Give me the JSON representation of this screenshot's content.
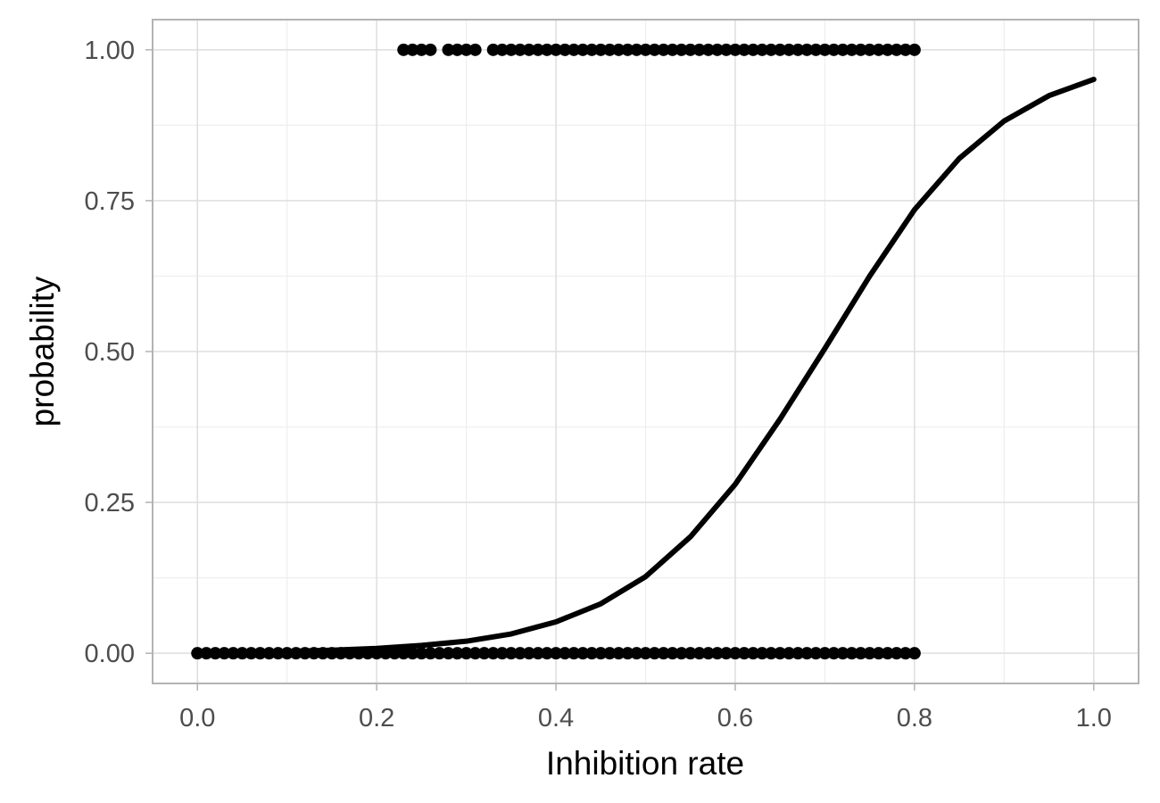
{
  "chart_data": {
    "type": "scatter",
    "title": "",
    "xlabel": "Inhibition rate",
    "ylabel": "probability",
    "xlim": [
      -0.05,
      1.05
    ],
    "ylim": [
      -0.05,
      1.05
    ],
    "x_ticks": [
      0.0,
      0.2,
      0.4,
      0.6,
      0.8,
      1.0
    ],
    "x_tick_labels": [
      "0.0",
      "0.2",
      "0.4",
      "0.6",
      "0.8",
      "1.0"
    ],
    "y_ticks": [
      0.0,
      0.25,
      0.5,
      0.75,
      1.0
    ],
    "y_tick_labels": [
      "0.00",
      "0.25",
      "0.50",
      "0.75",
      "1.00"
    ],
    "grid": true,
    "legend": "none",
    "colors": {
      "points": "#000000",
      "curve": "#000000",
      "grid_major": "#dedede",
      "grid_minor": "#eeeeee",
      "panel_border": "#b3b3b3"
    },
    "series": [
      {
        "type": "scatter",
        "points": [
          {
            "x": 0.0,
            "y": 0
          },
          {
            "x": 0.01,
            "y": 0
          },
          {
            "x": 0.02,
            "y": 0
          },
          {
            "x": 0.03,
            "y": 0
          },
          {
            "x": 0.04,
            "y": 0
          },
          {
            "x": 0.05,
            "y": 0
          },
          {
            "x": 0.06,
            "y": 0
          },
          {
            "x": 0.07,
            "y": 0
          },
          {
            "x": 0.08,
            "y": 0
          },
          {
            "x": 0.09,
            "y": 0
          },
          {
            "x": 0.1,
            "y": 0
          },
          {
            "x": 0.11,
            "y": 0
          },
          {
            "x": 0.12,
            "y": 0
          },
          {
            "x": 0.13,
            "y": 0
          },
          {
            "x": 0.14,
            "y": 0
          },
          {
            "x": 0.15,
            "y": 0
          },
          {
            "x": 0.16,
            "y": 0
          },
          {
            "x": 0.17,
            "y": 0
          },
          {
            "x": 0.18,
            "y": 0
          },
          {
            "x": 0.19,
            "y": 0
          },
          {
            "x": 0.2,
            "y": 0
          },
          {
            "x": 0.21,
            "y": 0
          },
          {
            "x": 0.22,
            "y": 0
          },
          {
            "x": 0.23,
            "y": 0
          },
          {
            "x": 0.24,
            "y": 0
          },
          {
            "x": 0.25,
            "y": 0
          },
          {
            "x": 0.26,
            "y": 0
          },
          {
            "x": 0.27,
            "y": 0
          },
          {
            "x": 0.28,
            "y": 0
          },
          {
            "x": 0.29,
            "y": 0
          },
          {
            "x": 0.3,
            "y": 0
          },
          {
            "x": 0.31,
            "y": 0
          },
          {
            "x": 0.32,
            "y": 0
          },
          {
            "x": 0.33,
            "y": 0
          },
          {
            "x": 0.34,
            "y": 0
          },
          {
            "x": 0.35,
            "y": 0
          },
          {
            "x": 0.36,
            "y": 0
          },
          {
            "x": 0.37,
            "y": 0
          },
          {
            "x": 0.38,
            "y": 0
          },
          {
            "x": 0.39,
            "y": 0
          },
          {
            "x": 0.4,
            "y": 0
          },
          {
            "x": 0.41,
            "y": 0
          },
          {
            "x": 0.42,
            "y": 0
          },
          {
            "x": 0.43,
            "y": 0
          },
          {
            "x": 0.44,
            "y": 0
          },
          {
            "x": 0.45,
            "y": 0
          },
          {
            "x": 0.46,
            "y": 0
          },
          {
            "x": 0.47,
            "y": 0
          },
          {
            "x": 0.48,
            "y": 0
          },
          {
            "x": 0.49,
            "y": 0
          },
          {
            "x": 0.5,
            "y": 0
          },
          {
            "x": 0.51,
            "y": 0
          },
          {
            "x": 0.52,
            "y": 0
          },
          {
            "x": 0.53,
            "y": 0
          },
          {
            "x": 0.54,
            "y": 0
          },
          {
            "x": 0.55,
            "y": 0
          },
          {
            "x": 0.56,
            "y": 0
          },
          {
            "x": 0.57,
            "y": 0
          },
          {
            "x": 0.58,
            "y": 0
          },
          {
            "x": 0.59,
            "y": 0
          },
          {
            "x": 0.6,
            "y": 0
          },
          {
            "x": 0.61,
            "y": 0
          },
          {
            "x": 0.62,
            "y": 0
          },
          {
            "x": 0.63,
            "y": 0
          },
          {
            "x": 0.64,
            "y": 0
          },
          {
            "x": 0.65,
            "y": 0
          },
          {
            "x": 0.66,
            "y": 0
          },
          {
            "x": 0.67,
            "y": 0
          },
          {
            "x": 0.68,
            "y": 0
          },
          {
            "x": 0.69,
            "y": 0
          },
          {
            "x": 0.7,
            "y": 0
          },
          {
            "x": 0.71,
            "y": 0
          },
          {
            "x": 0.72,
            "y": 0
          },
          {
            "x": 0.73,
            "y": 0
          },
          {
            "x": 0.74,
            "y": 0
          },
          {
            "x": 0.75,
            "y": 0
          },
          {
            "x": 0.76,
            "y": 0
          },
          {
            "x": 0.77,
            "y": 0
          },
          {
            "x": 0.78,
            "y": 0
          },
          {
            "x": 0.79,
            "y": 0
          },
          {
            "x": 0.8,
            "y": 0
          },
          {
            "x": 0.23,
            "y": 1
          },
          {
            "x": 0.24,
            "y": 1
          },
          {
            "x": 0.25,
            "y": 1
          },
          {
            "x": 0.26,
            "y": 1
          },
          {
            "x": 0.28,
            "y": 1
          },
          {
            "x": 0.29,
            "y": 1
          },
          {
            "x": 0.3,
            "y": 1
          },
          {
            "x": 0.31,
            "y": 1
          },
          {
            "x": 0.33,
            "y": 1
          },
          {
            "x": 0.34,
            "y": 1
          },
          {
            "x": 0.35,
            "y": 1
          },
          {
            "x": 0.36,
            "y": 1
          },
          {
            "x": 0.37,
            "y": 1
          },
          {
            "x": 0.38,
            "y": 1
          },
          {
            "x": 0.39,
            "y": 1
          },
          {
            "x": 0.4,
            "y": 1
          },
          {
            "x": 0.41,
            "y": 1
          },
          {
            "x": 0.42,
            "y": 1
          },
          {
            "x": 0.43,
            "y": 1
          },
          {
            "x": 0.44,
            "y": 1
          },
          {
            "x": 0.45,
            "y": 1
          },
          {
            "x": 0.46,
            "y": 1
          },
          {
            "x": 0.47,
            "y": 1
          },
          {
            "x": 0.48,
            "y": 1
          },
          {
            "x": 0.49,
            "y": 1
          },
          {
            "x": 0.5,
            "y": 1
          },
          {
            "x": 0.51,
            "y": 1
          },
          {
            "x": 0.52,
            "y": 1
          },
          {
            "x": 0.53,
            "y": 1
          },
          {
            "x": 0.54,
            "y": 1
          },
          {
            "x": 0.55,
            "y": 1
          },
          {
            "x": 0.56,
            "y": 1
          },
          {
            "x": 0.57,
            "y": 1
          },
          {
            "x": 0.58,
            "y": 1
          },
          {
            "x": 0.59,
            "y": 1
          },
          {
            "x": 0.6,
            "y": 1
          },
          {
            "x": 0.61,
            "y": 1
          },
          {
            "x": 0.62,
            "y": 1
          },
          {
            "x": 0.63,
            "y": 1
          },
          {
            "x": 0.64,
            "y": 1
          },
          {
            "x": 0.65,
            "y": 1
          },
          {
            "x": 0.66,
            "y": 1
          },
          {
            "x": 0.67,
            "y": 1
          },
          {
            "x": 0.68,
            "y": 1
          },
          {
            "x": 0.69,
            "y": 1
          },
          {
            "x": 0.7,
            "y": 1
          },
          {
            "x": 0.71,
            "y": 1
          },
          {
            "x": 0.72,
            "y": 1
          },
          {
            "x": 0.73,
            "y": 1
          },
          {
            "x": 0.74,
            "y": 1
          },
          {
            "x": 0.75,
            "y": 1
          },
          {
            "x": 0.76,
            "y": 1
          },
          {
            "x": 0.77,
            "y": 1
          },
          {
            "x": 0.78,
            "y": 1
          },
          {
            "x": 0.79,
            "y": 1
          },
          {
            "x": 0.8,
            "y": 1
          }
        ]
      },
      {
        "type": "line",
        "x": [
          0.0,
          0.05,
          0.1,
          0.15,
          0.2,
          0.25,
          0.3,
          0.35,
          0.4,
          0.45,
          0.5,
          0.55,
          0.6,
          0.65,
          0.7,
          0.75,
          0.8,
          0.85,
          0.9,
          0.95,
          1.0
        ],
        "y": [
          0.001,
          0.002,
          0.003,
          0.005,
          0.008,
          0.013,
          0.02,
          0.032,
          0.052,
          0.082,
          0.127,
          0.193,
          0.28,
          0.388,
          0.505,
          0.625,
          0.735,
          0.82,
          0.882,
          0.924,
          0.951
        ]
      }
    ]
  }
}
